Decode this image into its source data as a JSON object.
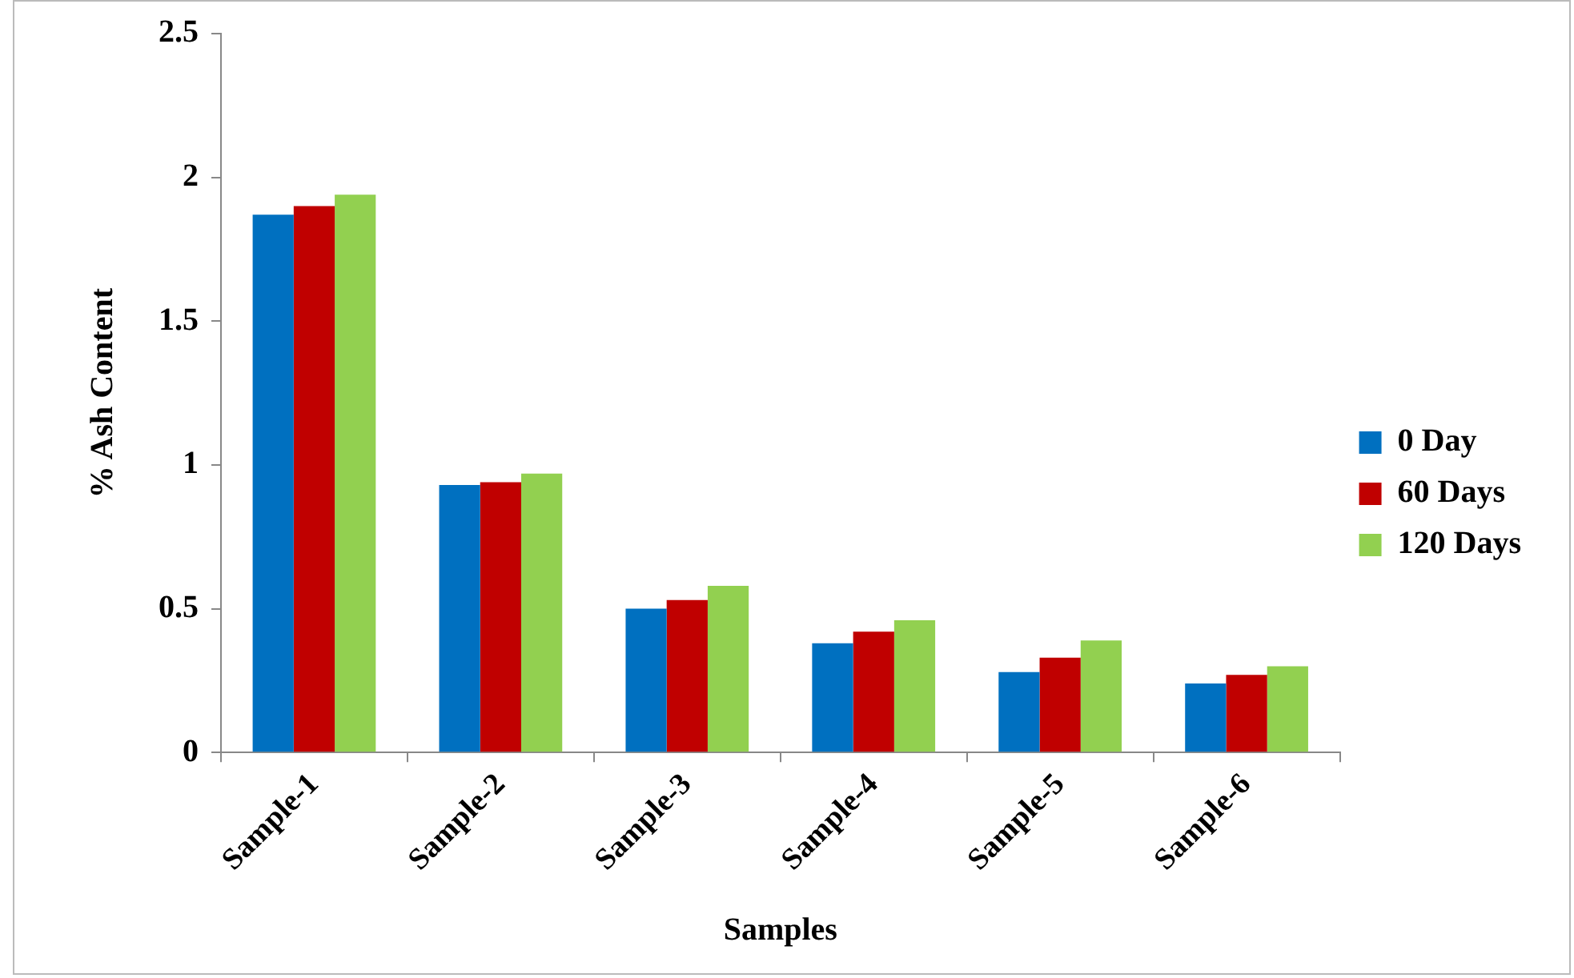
{
  "chart_data": {
    "type": "bar",
    "xlabel": "Samples",
    "ylabel": "% Ash Content",
    "categories": [
      "Sample-1",
      "Sample-2",
      "Sample-3",
      "Sample-4",
      "Sample-5",
      "Sample-6"
    ],
    "series": [
      {
        "name": "0 Day",
        "color": "#0070c0",
        "values": [
          1.87,
          0.93,
          0.5,
          0.38,
          0.28,
          0.24
        ]
      },
      {
        "name": "60 Days",
        "color": "#c00000",
        "values": [
          1.9,
          0.94,
          0.53,
          0.42,
          0.33,
          0.27
        ]
      },
      {
        "name": "120 Days",
        "color": "#92d050",
        "values": [
          1.94,
          0.97,
          0.58,
          0.46,
          0.39,
          0.3
        ]
      }
    ],
    "ylim": [
      0,
      2.5
    ],
    "yticks": [
      0,
      0.5,
      1,
      1.5,
      2,
      2.5
    ],
    "grid": false,
    "legend": "right"
  }
}
